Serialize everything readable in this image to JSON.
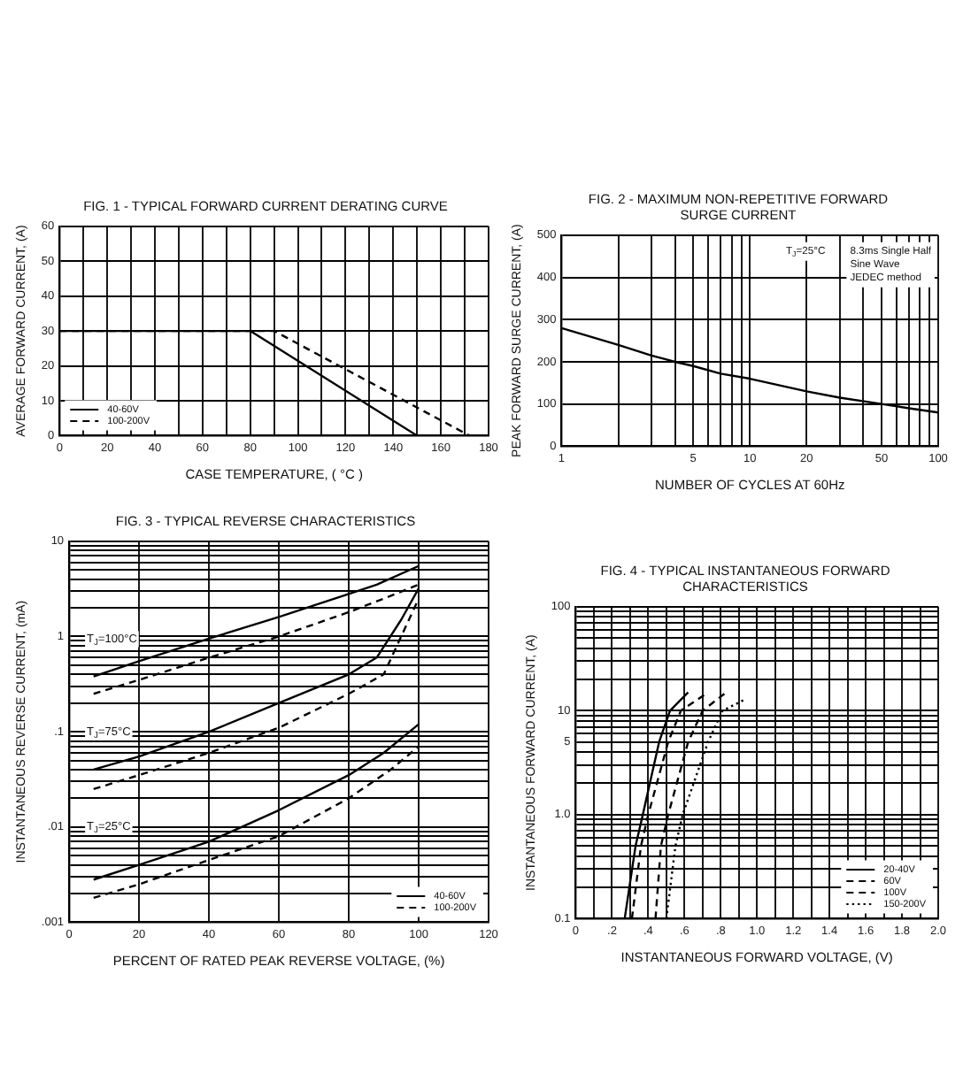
{
  "chart_data": [
    {
      "type": "line",
      "title": "FIG. 1 - TYPICAL FORWARD CURRENT DERATING CURVE",
      "xlabel": "CASE TEMPERATURE, ( °C )",
      "ylabel": "AVERAGE FORWARD CURRENT, (A)",
      "xlim": [
        0,
        180
      ],
      "xticks": [
        0,
        {
          "value": 10,
          "label": null
        },
        20,
        {
          "value": 30,
          "label": null
        },
        40,
        {
          "value": 50,
          "label": null
        },
        60,
        {
          "value": 70,
          "label": null
        },
        80,
        {
          "value": 90,
          "label": null
        },
        100,
        {
          "value": 110,
          "label": null
        },
        120,
        {
          "value": 130,
          "label": null
        },
        140,
        {
          "value": 150,
          "label": null
        },
        160,
        {
          "value": 170,
          "label": null
        },
        180
      ],
      "ylim": [
        0,
        60
      ],
      "yticks": [
        0,
        10,
        20,
        30,
        40,
        50,
        60
      ],
      "grid": true,
      "legend": "bottom left",
      "series": [
        {
          "name": "40-60V",
          "color": "#000000",
          "line_style": "solid",
          "x": [
            0,
            80,
            150
          ],
          "values": [
            30,
            30,
            0
          ]
        },
        {
          "name": "100-200V",
          "color": "#000000",
          "line_style": "dashed",
          "x": [
            0,
            90,
            172
          ],
          "values": [
            30,
            30,
            0
          ]
        }
      ]
    },
    {
      "type": "line",
      "title": "FIG. 2 - MAXIMUM NON-REPETITIVE FORWARD SURGE CURRENT",
      "xlabel": "NUMBER OF CYCLES AT 60Hz",
      "ylabel": "PEAK FORWARD SURGE CURRENT, (A)",
      "log": "x",
      "xlim": [
        1,
        100
      ],
      "xticks": [
        1,
        {
          "value": 2,
          "label": null
        },
        {
          "value": 3,
          "label": null
        },
        {
          "value": 4,
          "label": null
        },
        5,
        {
          "value": 6,
          "label": null
        },
        {
          "value": 7,
          "label": null
        },
        {
          "value": 8,
          "label": null
        },
        {
          "value": 9,
          "label": null
        },
        10,
        20,
        {
          "value": 30,
          "label": null
        },
        {
          "value": 40,
          "label": null
        },
        50,
        {
          "value": 60,
          "label": null
        },
        {
          "value": 70,
          "label": null
        },
        {
          "value": 80,
          "label": null
        },
        {
          "value": 90,
          "label": null
        },
        100
      ],
      "ylim": [
        0,
        500
      ],
      "yticks": [
        0,
        100,
        200,
        300,
        400,
        500
      ],
      "grid": true,
      "annotations": [
        "T$_{J}$=25°C",
        "8.3ms Single Half Sine Wave JEDEC method"
      ],
      "series": [
        {
          "color": "#000000",
          "line_style": "solid",
          "x": [
            1,
            2,
            3,
            4,
            5,
            7,
            10,
            20,
            30,
            50,
            70,
            100
          ],
          "values": [
            280,
            240,
            215,
            200,
            190,
            172,
            160,
            130,
            115,
            100,
            90,
            80
          ]
        }
      ]
    },
    {
      "type": "line",
      "title": "FIG. 3 - TYPICAL REVERSE CHARACTERISTICS",
      "xlabel": "PERCENT OF RATED PEAK REVERSE VOLTAGE, (%)",
      "ylabel": "INSTANTANEOUS REVERSE CURRENT, (mA)",
      "log": "y",
      "xlim": [
        0,
        120
      ],
      "xticks": [
        0,
        20,
        40,
        60,
        80,
        100,
        120
      ],
      "ylim": [
        0.001,
        10
      ],
      "yticks": [
        {
          "value": 0.001,
          "label": ".001"
        },
        {
          "value": 0.002,
          "label": null
        },
        {
          "value": 0.003,
          "label": null
        },
        {
          "value": 0.004,
          "label": null
        },
        {
          "value": 0.005,
          "label": null
        },
        {
          "value": 0.006,
          "label": null
        },
        {
          "value": 0.007,
          "label": null
        },
        {
          "value": 0.008,
          "label": null
        },
        {
          "value": 0.009,
          "label": null
        },
        {
          "value": 0.01,
          "label": ".01"
        },
        {
          "value": 0.02,
          "label": null
        },
        {
          "value": 0.03,
          "label": null
        },
        {
          "value": 0.04,
          "label": null
        },
        {
          "value": 0.05,
          "label": null
        },
        {
          "value": 0.06,
          "label": null
        },
        {
          "value": 0.07,
          "label": null
        },
        {
          "value": 0.08,
          "label": null
        },
        {
          "value": 0.09,
          "label": null
        },
        {
          "value": 0.1,
          "label": ".1"
        },
        {
          "value": 0.2,
          "label": null
        },
        {
          "value": 0.3,
          "label": null
        },
        {
          "value": 0.4,
          "label": null
        },
        {
          "value": 0.5,
          "label": null
        },
        {
          "value": 0.6,
          "label": null
        },
        {
          "value": 0.7,
          "label": null
        },
        {
          "value": 0.8,
          "label": null
        },
        {
          "value": 0.9,
          "label": null
        },
        1,
        {
          "value": 2,
          "label": null
        },
        {
          "value": 3,
          "label": null
        },
        {
          "value": 4,
          "label": null
        },
        {
          "value": 5,
          "label": null
        },
        {
          "value": 6,
          "label": null
        },
        {
          "value": 7,
          "label": null
        },
        {
          "value": 8,
          "label": null
        },
        {
          "value": 9,
          "label": null
        },
        10
      ],
      "grid": true,
      "legend": "bottom right",
      "annotations": [
        "T$_{J}$=100°C",
        "T$_{J}$=75°C",
        "T$_{J}$=25°C"
      ],
      "series": [
        {
          "name": "40-60V",
          "color": "#000000",
          "line_style": "solid",
          "x": [
            7,
            20,
            40,
            60,
            80,
            88,
            100
          ],
          "values": [
            0.38,
            0.55,
            0.95,
            1.6,
            2.8,
            3.5,
            5.5
          ]
        },
        {
          "name": "100-200V",
          "color": "#000000",
          "line_style": "dashed",
          "x": [
            7,
            20,
            40,
            60,
            80,
            90,
            100
          ],
          "values": [
            0.25,
            0.35,
            0.6,
            1.0,
            1.8,
            2.5,
            3.5
          ]
        },
        {
          "color": "#000000",
          "line_style": "solid",
          "x": [
            7,
            20,
            40,
            60,
            80,
            88,
            95,
            100
          ],
          "values": [
            0.04,
            0.055,
            0.1,
            0.2,
            0.4,
            0.6,
            1.5,
            3.2
          ]
        },
        {
          "color": "#000000",
          "line_style": "dashed",
          "x": [
            7,
            20,
            40,
            60,
            80,
            90,
            95,
            100
          ],
          "values": [
            0.025,
            0.035,
            0.06,
            0.11,
            0.25,
            0.4,
            1.0,
            2.5
          ]
        },
        {
          "color": "#000000",
          "line_style": "solid",
          "x": [
            7,
            20,
            40,
            60,
            80,
            90,
            100
          ],
          "values": [
            0.0028,
            0.004,
            0.007,
            0.015,
            0.035,
            0.06,
            0.12
          ]
        },
        {
          "color": "#000000",
          "line_style": "dashed",
          "x": [
            7,
            20,
            40,
            60,
            80,
            92,
            100
          ],
          "values": [
            0.0018,
            0.0025,
            0.0045,
            0.008,
            0.02,
            0.04,
            0.07
          ]
        }
      ]
    },
    {
      "type": "line",
      "title": "FIG. 4 - TYPICAL INSTANTANEOUS FORWARD CHARACTERISTICS",
      "xlabel": "INSTANTANEOUS FORWARD VOLTAGE, (V)",
      "ylabel": "INSTANTANEOUS FORWARD CURRENT, (A)",
      "log": "y",
      "xlim": [
        0,
        2
      ],
      "xticks": [
        0,
        {
          "value": 0.1,
          "label": null
        },
        {
          "value": 0.2,
          "label": ".2"
        },
        {
          "value": 0.3,
          "label": null
        },
        {
          "value": 0.4,
          "label": ".4"
        },
        {
          "value": 0.5,
          "label": null
        },
        {
          "value": 0.6,
          "label": ".6"
        },
        {
          "value": 0.7,
          "label": null
        },
        {
          "value": 0.8,
          "label": ".8"
        },
        {
          "value": 0.9,
          "label": null
        },
        {
          "value": 1,
          "label": "1.0"
        },
        {
          "value": 1.1,
          "label": null
        },
        1.2,
        {
          "value": 1.3,
          "label": null
        },
        1.4,
        {
          "value": 1.5,
          "label": null
        },
        1.6,
        {
          "value": 1.7,
          "label": null
        },
        1.8,
        {
          "value": 1.9,
          "label": null
        },
        {
          "value": 2,
          "label": "2.0"
        }
      ],
      "ylim": [
        0.1,
        100
      ],
      "yticks": [
        0.1,
        {
          "value": 0.2,
          "label": null
        },
        {
          "value": 0.3,
          "label": null
        },
        {
          "value": 0.4,
          "label": null
        },
        {
          "value": 0.5,
          "label": null
        },
        {
          "value": 0.6,
          "label": null
        },
        {
          "value": 0.7,
          "label": null
        },
        {
          "value": 0.8,
          "label": null
        },
        {
          "value": 0.9,
          "label": null
        },
        {
          "value": 1,
          "label": "1.0"
        },
        {
          "value": 2,
          "label": null
        },
        {
          "value": 3,
          "label": null
        },
        {
          "value": 4,
          "label": null
        },
        5,
        {
          "value": 6,
          "label": null
        },
        {
          "value": 7,
          "label": null
        },
        {
          "value": 8,
          "label": null
        },
        {
          "value": 9,
          "label": null
        },
        10,
        {
          "value": 20,
          "label": null
        },
        {
          "value": 30,
          "label": null
        },
        {
          "value": 40,
          "label": null
        },
        {
          "value": 50,
          "label": null
        },
        {
          "value": 60,
          "label": null
        },
        {
          "value": 70,
          "label": null
        },
        {
          "value": 80,
          "label": null
        },
        {
          "value": 90,
          "label": null
        },
        100
      ],
      "grid": true,
      "legend": "bottom right",
      "series": [
        {
          "name": "20-40V",
          "color": "#000000",
          "line_style": "solid",
          "x": [
            0.27,
            0.33,
            0.37,
            0.46,
            0.52,
            0.62
          ],
          "values": [
            0.1,
            0.5,
            1,
            5,
            10,
            15
          ]
        },
        {
          "name": "60V",
          "color": "#000000",
          "line_style": "dashed",
          "x": [
            0.31,
            0.36,
            0.4,
            0.51,
            0.58,
            0.73
          ],
          "values": [
            0.1,
            0.5,
            1,
            5,
            10,
            15
          ]
        },
        {
          "name": "100V",
          "color": "#000000",
          "line_style": "dashed",
          "x": [
            0.44,
            0.47,
            0.51,
            0.62,
            0.7,
            0.83
          ],
          "values": [
            0.1,
            0.5,
            1,
            5,
            10,
            15
          ]
        },
        {
          "name": "150-200V",
          "color": "#000000",
          "line_style": "dotted",
          "x": [
            0.5,
            0.55,
            0.59,
            0.73,
            0.81,
            0.94
          ],
          "values": [
            0.1,
            0.5,
            1,
            5,
            10,
            13
          ]
        }
      ]
    }
  ]
}
